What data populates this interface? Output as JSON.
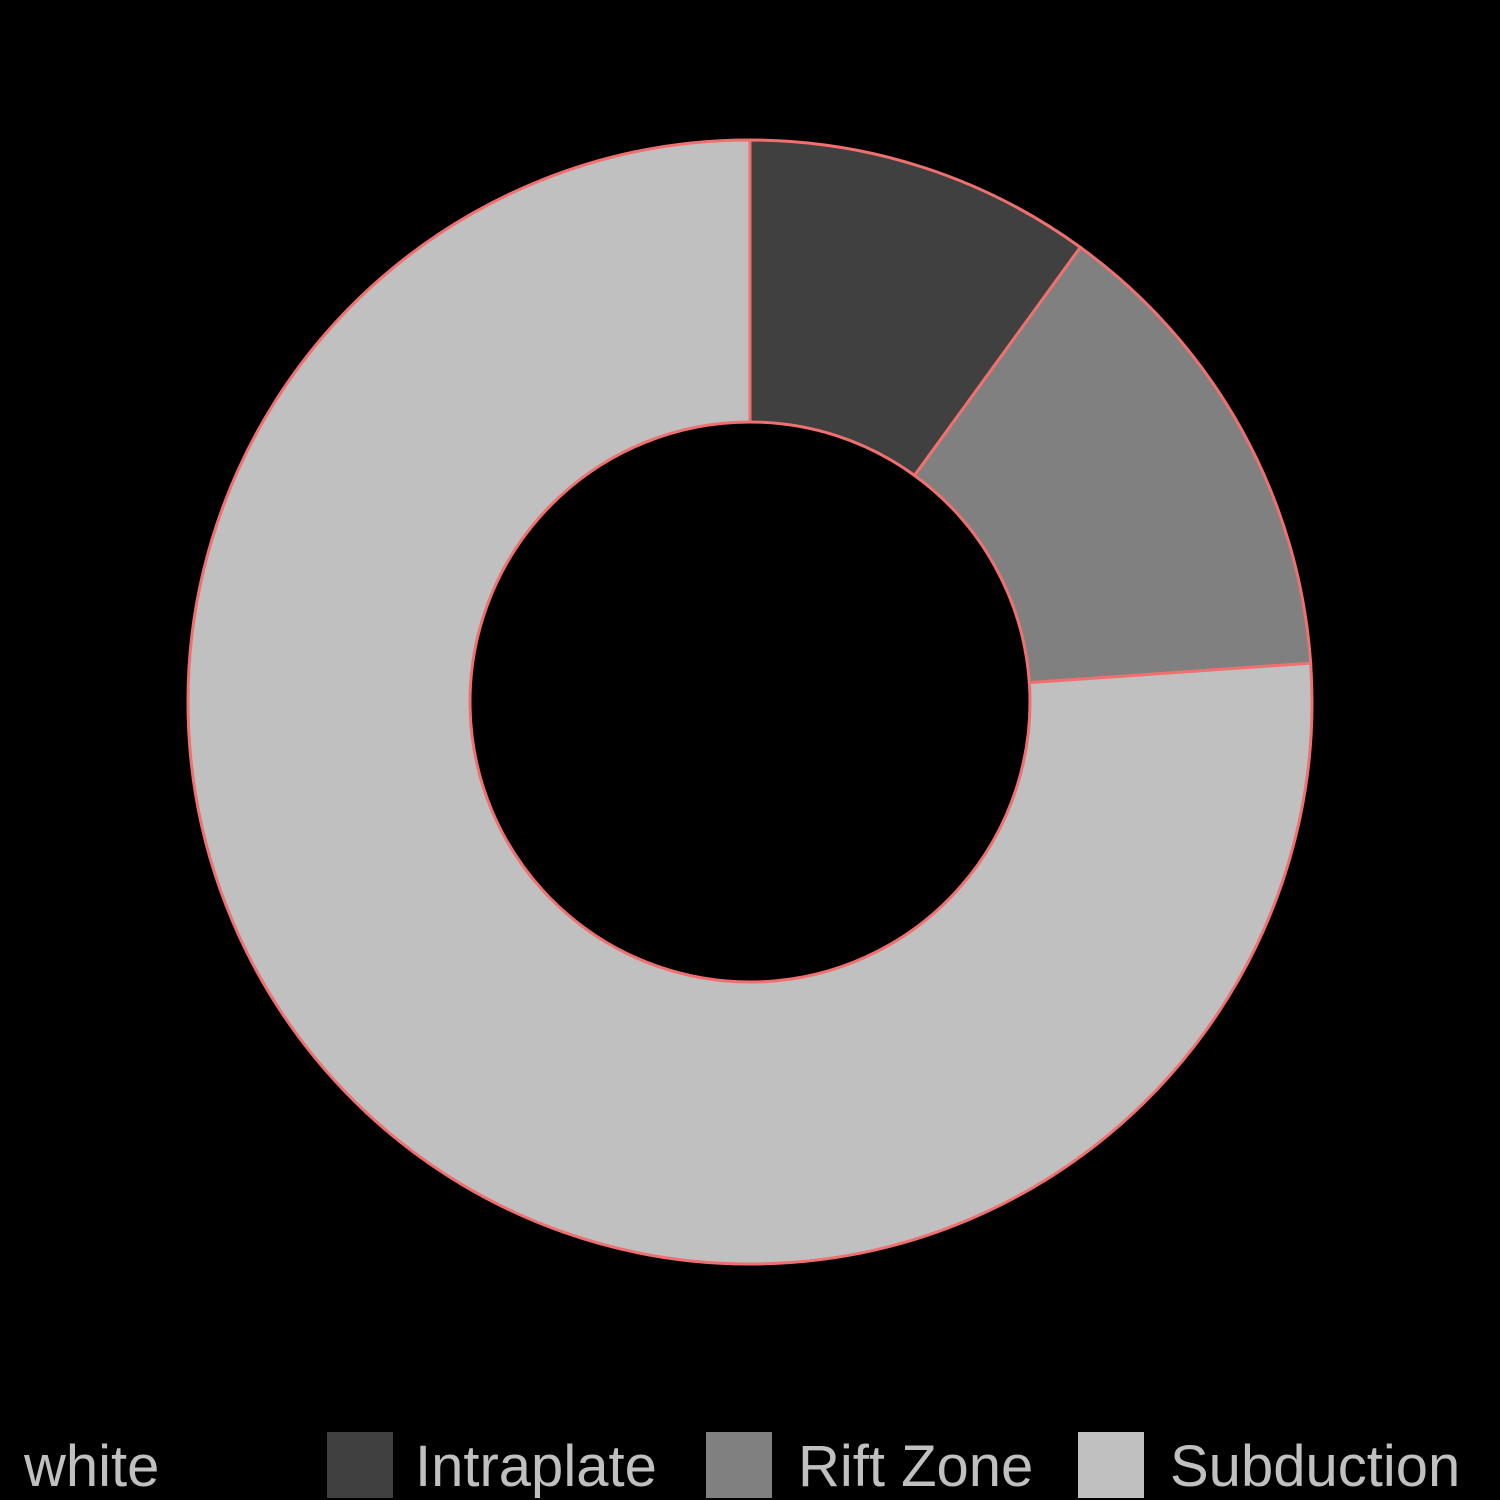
{
  "chart_data": {
    "type": "pie",
    "variant": "donut",
    "categories": [
      "Intraplate",
      "Rift Zone",
      "Subduction"
    ],
    "values": [
      10.0,
      13.9,
      76.1
    ],
    "unit": "%",
    "start_angle": "top",
    "direction": "clockwise",
    "legend_title": "white",
    "legend_position": "bottom",
    "colors": {
      "background": "#000000",
      "slice_fills": [
        "#404040",
        "#808080",
        "#c0c0c0"
      ],
      "slice_stroke": "#f07070",
      "legend_text": "#c0c0c0"
    }
  }
}
